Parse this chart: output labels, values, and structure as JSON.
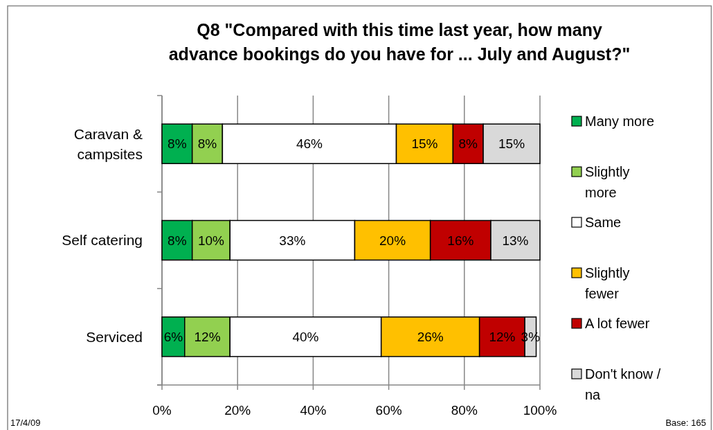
{
  "chart_data": {
    "type": "bar",
    "orientation": "horizontal",
    "stacked": true,
    "title": "Q8 \"Compared with this time last year, how many\nadvance bookings do you have for ... July and August?\"",
    "categories": [
      "Caravan & campsites",
      "Self catering",
      "Serviced"
    ],
    "series": [
      {
        "name": "Many more",
        "color": "#00b050",
        "values": [
          8,
          8,
          6
        ],
        "value_labels": [
          "8%",
          "8%",
          "6%"
        ]
      },
      {
        "name": "Slightly more",
        "color": "#92d050",
        "values": [
          8,
          10,
          12
        ],
        "value_labels": [
          "8%",
          "10%",
          "12%"
        ]
      },
      {
        "name": "Same",
        "color": "#ffffff",
        "values": [
          46,
          33,
          40
        ],
        "value_labels": [
          "46%",
          "33%",
          "40%"
        ]
      },
      {
        "name": "Slightly fewer",
        "color": "#ffc000",
        "values": [
          15,
          20,
          26
        ],
        "value_labels": [
          "15%",
          "20%",
          "26%"
        ]
      },
      {
        "name": "A lot fewer",
        "color": "#c00000",
        "values": [
          8,
          16,
          12
        ],
        "value_labels": [
          "8%",
          "16%",
          "12%"
        ]
      },
      {
        "name": "Don't know / na",
        "color": "#d9d9d9",
        "values": [
          15,
          13,
          3
        ],
        "value_labels": [
          "15%",
          "13%",
          "3%"
        ]
      }
    ],
    "xlim": [
      0,
      100
    ],
    "xticks": [
      {
        "value": 0,
        "label": "0%"
      },
      {
        "value": 20,
        "label": "20%"
      },
      {
        "value": 40,
        "label": "40%"
      },
      {
        "value": 60,
        "label": "60%"
      },
      {
        "value": 80,
        "label": "80%"
      },
      {
        "value": 100,
        "label": "100%"
      }
    ],
    "grid": "x",
    "legend": "right",
    "annotations": [
      "17/4/09",
      "Base: 165"
    ]
  }
}
